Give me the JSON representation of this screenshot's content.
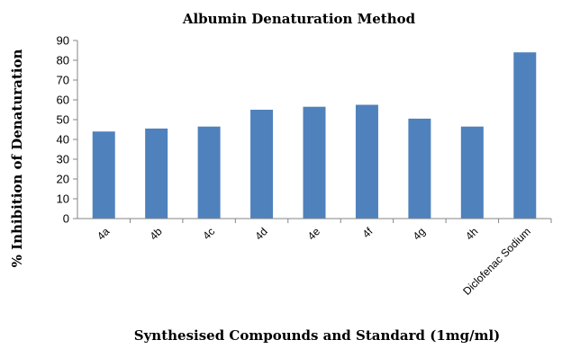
{
  "chart_data": {
    "type": "bar",
    "title": "Albumin Denaturation Method",
    "xlabel": "Synthesised Compounds and Standard (1mg/ml)",
    "ylabel": "% Inhibition of Denaturation",
    "categories": [
      "4a",
      "4b",
      "4c",
      "4d",
      "4e",
      "4f",
      "4g",
      "4h",
      "Diclofenac Sodium"
    ],
    "values": [
      44,
      45.5,
      46.5,
      55,
      56.5,
      57.5,
      50.5,
      46.5,
      84
    ],
    "ylim": [
      0,
      90
    ],
    "yticks": [
      0,
      10,
      20,
      30,
      40,
      50,
      60,
      70,
      80,
      90
    ],
    "grid": false,
    "legend": "none",
    "bar_color": "#4F81BD"
  }
}
